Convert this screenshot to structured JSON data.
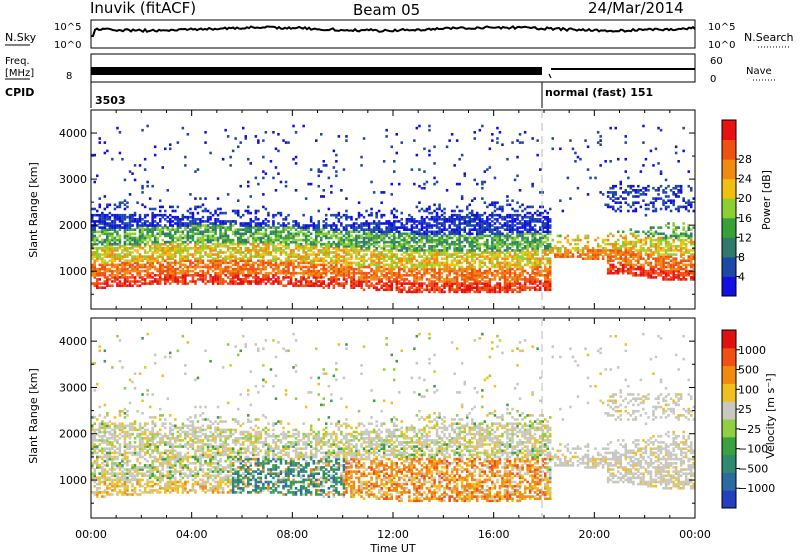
{
  "header": {
    "station": "Inuvik (fitACF)",
    "beam": "Beam 05",
    "date": "24/Mar/2014"
  },
  "status_panels": {
    "nsky_label": "N.Sky",
    "nsky_ticks": [
      "10^5",
      "10^0"
    ],
    "nsearch_label": "N.Search",
    "nsearch_ticks": [
      "10^5",
      "10^0"
    ],
    "freq_label_line1": "Freq.",
    "freq_label_line2": "[MHz]",
    "freq_ticks": [
      "8"
    ],
    "nave_label": "Nave",
    "nave_ticks": [
      "60",
      "0"
    ],
    "cpid_label": "CPID",
    "cpid_segments": [
      {
        "start_hour": 0,
        "text": "3503"
      },
      {
        "start_hour": 18,
        "text": "normal (fast) 151"
      }
    ]
  },
  "chart_data": [
    {
      "type": "heatmap",
      "name": "power",
      "ylabel": "Slant Range [km]",
      "xlabel": "",
      "xlim": [
        0,
        24
      ],
      "ylim": [
        180,
        4500
      ],
      "y_ticks": [
        1000,
        2000,
        3000,
        4000
      ],
      "x_ticks": [
        0,
        4,
        8,
        12,
        16,
        20,
        24
      ],
      "colorbar": {
        "label": "Power [dB]",
        "ticks": [
          "4",
          "8",
          "12",
          "16",
          "20",
          "24",
          "28"
        ],
        "colors": [
          "#1010e0",
          "#1c48a8",
          "#2f7a6a",
          "#38a038",
          "#8cd030",
          "#f0c010",
          "#f08a10",
          "#f05010",
          "#e81010"
        ]
      },
      "mode_change_hour": 18
    },
    {
      "type": "heatmap",
      "name": "velocity",
      "ylabel": "Slant Range [km]",
      "xlabel": "Time UT",
      "xlim": [
        0,
        24
      ],
      "ylim": [
        180,
        4500
      ],
      "y_ticks": [
        1000,
        2000,
        3000,
        4000
      ],
      "x_ticks": [
        0,
        4,
        8,
        12,
        16,
        20,
        24
      ],
      "x_tick_labels": [
        "00:00",
        "04:00",
        "08:00",
        "12:00",
        "16:00",
        "20:00",
        "00:00"
      ],
      "colorbar": {
        "label": "Velocity [m s⁻¹]",
        "ticks": [
          "1000",
          "500",
          "100",
          "25",
          "−25",
          "−100",
          "−500",
          "−1000"
        ],
        "colors": [
          "#2040c0",
          "#2a6aa0",
          "#2f8a70",
          "#3aa040",
          "#90d040",
          "#c8c8c0",
          "#f0c020",
          "#f08a10",
          "#f05010",
          "#e01010"
        ]
      },
      "mode_change_hour": 18
    }
  ]
}
